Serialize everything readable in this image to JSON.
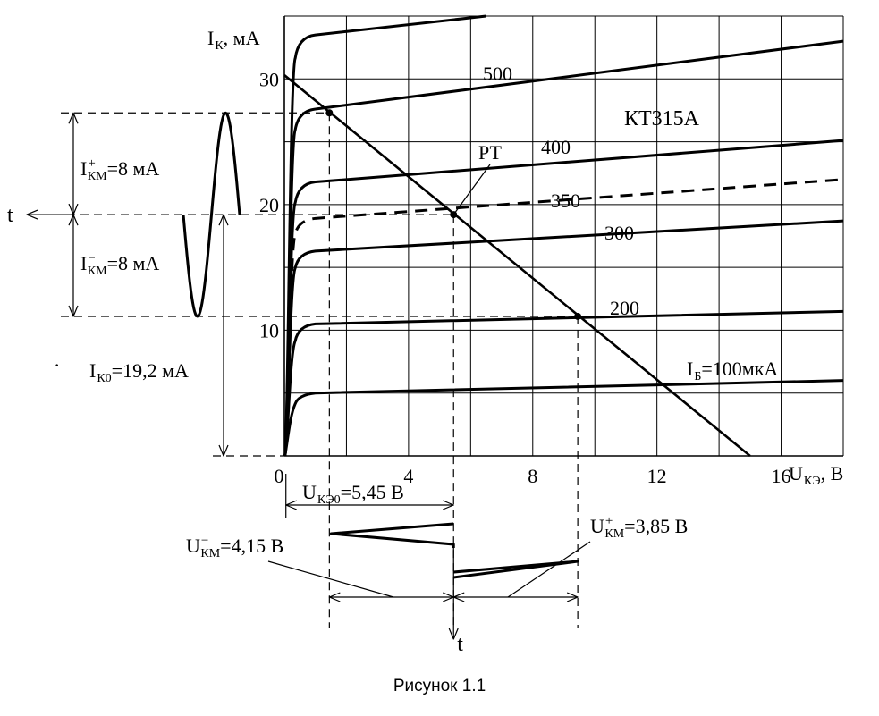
{
  "chart_data": {
    "type": "line",
    "title": "КТ315А",
    "ylabel": {
      "main": "I",
      "sub": "К",
      "rest": ", мА"
    },
    "xlabel": {
      "main": "U",
      "sub": "КЭ",
      "rest": ", В"
    },
    "xlim": [
      0,
      18
    ],
    "ylim": [
      0,
      35
    ],
    "x_ticks": [
      0,
      4,
      8,
      12,
      16
    ],
    "y_ticks": [
      10,
      20,
      30
    ],
    "grid": true,
    "series": [
      {
        "name": "100",
        "label_main": "I",
        "label_sub": "Б",
        "label_rest": "=100мкА",
        "knee": 5.0,
        "points": [
          [
            1,
            5.0
          ],
          [
            18,
            6.0
          ]
        ],
        "dashed": false
      },
      {
        "name": "200",
        "label": "200",
        "knee": 10.0,
        "points": [
          [
            1,
            10.5
          ],
          [
            18,
            11.5
          ]
        ],
        "dashed": false
      },
      {
        "name": "300",
        "label": "300",
        "knee": 15.8,
        "points": [
          [
            1,
            16.3
          ],
          [
            18,
            18.7
          ]
        ],
        "dashed": false
      },
      {
        "name": "350",
        "label": "350",
        "knee": 18.5,
        "points": [
          [
            1,
            18.9
          ],
          [
            18,
            22.0
          ]
        ],
        "dashed": true
      },
      {
        "name": "400",
        "label": "400",
        "knee": 21.0,
        "points": [
          [
            1,
            21.8
          ],
          [
            18,
            25.1
          ]
        ],
        "dashed": false
      },
      {
        "name": "500",
        "label": "500",
        "knee": 26.8,
        "points": [
          [
            1,
            27.6
          ],
          [
            18,
            33.0
          ]
        ],
        "dashed": false
      },
      {
        "name": "top",
        "knee": 32.5,
        "points": [
          [
            1,
            33.5
          ],
          [
            6.5,
            35.0
          ]
        ],
        "dashed": false
      }
    ],
    "load_line": {
      "points": [
        [
          0,
          30.3
        ],
        [
          15,
          0
        ]
      ]
    },
    "operating_point": {
      "label": "РТ",
      "x": 5.45,
      "y": 19.2
    },
    "annotations": {
      "ikm_plus": {
        "main": "I",
        "sub": "КМ",
        "sup": "+",
        "rest": "=8 мА"
      },
      "ikm_minus": {
        "main": "I",
        "sub": "КМ",
        "sup": "−",
        "rest": "=8 мА"
      },
      "ik0": {
        "main": "I",
        "sub": "К0",
        "rest": "=19,2 мА"
      },
      "ukeo": {
        "main": "U",
        "sub": "КЭ0",
        "rest": "=5,45 В"
      },
      "ukm_minus": {
        "main": "U",
        "sub": "КМ",
        "sup": "−",
        "rest": "=4,15 В"
      },
      "ukm_plus": {
        "main": "U",
        "sub": "КМ",
        "sup": "+",
        "rest": "=3,85 В"
      },
      "t_left": "t",
      "t_bottom": "t",
      "dot": "·"
    }
  },
  "caption": "Рисунок 1.1"
}
